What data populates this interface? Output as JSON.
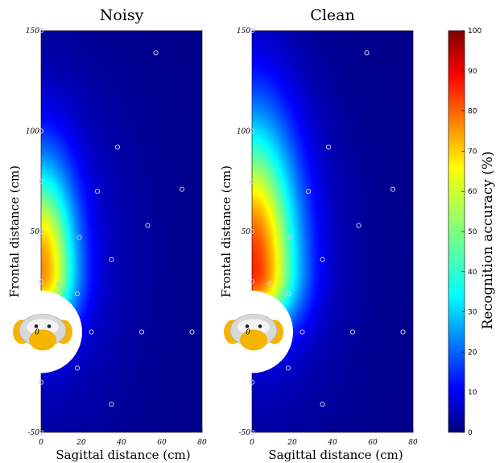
{
  "chart_data": {
    "type": "heatmap",
    "colorbar": {
      "label": "Recognition accuracy (%)",
      "range": [
        0,
        100
      ],
      "ticks": [
        "0",
        "10",
        "20",
        "30",
        "40",
        "50",
        "60",
        "70",
        "80",
        "90",
        "100"
      ],
      "colormap": "jet"
    },
    "xlabel": "Sagittal distance (cm)",
    "ylabel": "Frontal distance (cm)",
    "xlim": [
      0,
      80
    ],
    "ylim": [
      -50,
      150
    ],
    "xticks": [
      "0",
      "20",
      "40",
      "60",
      "80"
    ],
    "yticks": [
      "-50",
      "0",
      "50",
      "100",
      "150"
    ],
    "panels": [
      {
        "title": "Noisy",
        "peak_accuracy": 65,
        "spread_cm": 17,
        "reach_cm": 95
      },
      {
        "title": "Clean",
        "peak_accuracy": 75,
        "spread_cm": 22,
        "reach_cm": 130
      }
    ],
    "measurement_points": [
      {
        "x": 0,
        "y": 150
      },
      {
        "x": 57,
        "y": 139
      },
      {
        "x": 0,
        "y": 100
      },
      {
        "x": 38,
        "y": 92
      },
      {
        "x": 0,
        "y": 75
      },
      {
        "x": 28,
        "y": 70
      },
      {
        "x": 70,
        "y": 71
      },
      {
        "x": 0,
        "y": 50
      },
      {
        "x": 53,
        "y": 53
      },
      {
        "x": 19,
        "y": 47
      },
      {
        "x": 35,
        "y": 36
      },
      {
        "x": 0,
        "y": 25
      },
      {
        "x": 9,
        "y": 24
      },
      {
        "x": 18,
        "y": 19
      },
      {
        "x": 25,
        "y": 0
      },
      {
        "x": 50,
        "y": 0
      },
      {
        "x": 75,
        "y": 0
      },
      {
        "x": 18,
        "y": -18
      },
      {
        "x": 0,
        "y": -25
      },
      {
        "x": 35,
        "y": -36
      },
      {
        "x": 0,
        "y": -50
      }
    ],
    "robot_head_position": {
      "x": 0,
      "y": 0
    }
  }
}
